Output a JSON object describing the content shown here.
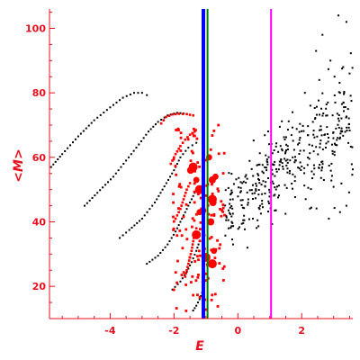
{
  "chart_data": {
    "type": "scatter",
    "xlabel": "E",
    "ylabel": "<M>",
    "xlim": [
      -5.9,
      3.6
    ],
    "ylim": [
      10,
      106
    ],
    "x_ticks": [
      -4,
      -2,
      0,
      2
    ],
    "y_ticks": [
      20,
      40,
      60,
      80,
      100
    ],
    "x_tick_labels": [
      "-4",
      "-2",
      "0",
      "2"
    ],
    "y_tick_labels": [
      "20",
      "40",
      "60",
      "80",
      "100"
    ],
    "colors": {
      "axis": "#e8101e",
      "black_points": "#000000",
      "red_points": "#ff0000",
      "blue_line": "#0000ff",
      "green_line": "#008000",
      "magenta_line": "#ff00ff"
    },
    "vertical_lines": [
      {
        "color": "blue",
        "x": -1.08
      },
      {
        "color": "green",
        "x": -0.95
      },
      {
        "color": "magenta",
        "x": 1.04
      }
    ],
    "black_series": [
      {
        "shape": "arc",
        "points": [
          [
            -5.85,
            57
          ],
          [
            -5.5,
            61
          ],
          [
            -5.0,
            66.5
          ],
          [
            -4.5,
            71.5
          ],
          [
            -4.0,
            75.5
          ],
          [
            -3.6,
            78.5
          ],
          [
            -3.25,
            80
          ],
          [
            -3.0,
            80
          ],
          [
            -2.85,
            79.3
          ]
        ]
      },
      {
        "shape": "arc",
        "points": [
          [
            -4.8,
            45
          ],
          [
            -4.4,
            49
          ],
          [
            -3.9,
            54
          ],
          [
            -3.5,
            59
          ],
          [
            -3.1,
            64
          ],
          [
            -2.8,
            68
          ],
          [
            -2.5,
            71
          ],
          [
            -2.2,
            73
          ],
          [
            -1.9,
            73.8
          ],
          [
            -1.6,
            73.5
          ]
        ]
      },
      {
        "shape": "arc",
        "points": [
          [
            -3.7,
            35
          ],
          [
            -3.4,
            37.5
          ],
          [
            -3.0,
            41
          ],
          [
            -2.6,
            46
          ],
          [
            -2.3,
            51
          ],
          [
            -2.0,
            56
          ],
          [
            -1.8,
            60
          ],
          [
            -1.55,
            63
          ],
          [
            -1.3,
            64.5
          ]
        ]
      },
      {
        "shape": "arc",
        "points": [
          [
            -2.85,
            27
          ],
          [
            -2.5,
            29.5
          ],
          [
            -2.2,
            33
          ],
          [
            -1.95,
            37
          ],
          [
            -1.7,
            42
          ],
          [
            -1.5,
            46
          ],
          [
            -1.35,
            49
          ],
          [
            -1.2,
            51
          ]
        ]
      },
      {
        "shape": "arc",
        "points": [
          [
            -2.05,
            19
          ],
          [
            -1.8,
            21.5
          ],
          [
            -1.6,
            24.5
          ],
          [
            -1.45,
            27.5
          ],
          [
            -1.3,
            31
          ],
          [
            -1.2,
            34
          ]
        ]
      },
      {
        "shape": "arc",
        "points": [
          [
            -1.4,
            12.5
          ],
          [
            -1.3,
            14
          ],
          [
            -1.2,
            16
          ],
          [
            -1.12,
            18
          ]
        ]
      },
      {
        "shape": "cloud",
        "x_range": [
          -0.4,
          3.6
        ],
        "y_center": [
          44,
          72
        ],
        "y_spread": [
          7,
          14
        ],
        "count": 380
      },
      {
        "shape": "sparse",
        "points": [
          [
            2.65,
            98
          ],
          [
            3.15,
            104
          ],
          [
            3.4,
            102
          ],
          [
            2.45,
            93
          ],
          [
            2.9,
            90
          ],
          [
            3.3,
            88
          ],
          [
            3.5,
            86
          ],
          [
            2.55,
            84
          ],
          [
            3.2,
            80
          ],
          [
            2.1,
            80
          ],
          [
            3.05,
            77
          ],
          [
            3.45,
            75
          ],
          [
            2.8,
            73
          ],
          [
            2.35,
            71
          ],
          [
            3.25,
            69
          ],
          [
            3.4,
            45
          ],
          [
            3.2,
            43
          ],
          [
            2.85,
            41
          ],
          [
            -0.15,
            33
          ],
          [
            0.3,
            32
          ]
        ]
      }
    ],
    "red_series": [
      {
        "shape": "arc",
        "points": [
          [
            -2.4,
            70.5
          ],
          [
            -2.25,
            72.5
          ],
          [
            -2.05,
            73.3
          ],
          [
            -1.85,
            73.5
          ],
          [
            -1.6,
            73.4
          ],
          [
            -1.4,
            73
          ]
        ]
      },
      {
        "shape": "arc",
        "points": [
          [
            -2.1,
            58
          ],
          [
            -1.95,
            61
          ],
          [
            -1.8,
            63.5
          ],
          [
            -1.65,
            65.5
          ],
          [
            -1.5,
            67
          ],
          [
            -1.35,
            68
          ]
        ]
      },
      {
        "shape": "arc",
        "points": [
          [
            -1.95,
            41
          ],
          [
            -1.8,
            44
          ],
          [
            -1.7,
            47
          ],
          [
            -1.6,
            50
          ],
          [
            -1.5,
            52
          ]
        ]
      },
      {
        "shape": "arc",
        "points": [
          [
            -1.65,
            23
          ],
          [
            -1.55,
            27
          ],
          [
            -1.45,
            31
          ],
          [
            -1.38,
            35
          ],
          [
            -1.3,
            38
          ]
        ]
      },
      {
        "shape": "cluster",
        "x_range": [
          -1.85,
          -0.05
        ],
        "y_range": [
          12,
          70
        ],
        "count": 140
      },
      {
        "shape": "large_points",
        "points": [
          [
            -1.4,
            57
          ],
          [
            -1.48,
            56
          ],
          [
            -1.3,
            53
          ],
          [
            -1.2,
            50
          ],
          [
            -0.8,
            53
          ],
          [
            -0.7,
            54
          ],
          [
            -0.8,
            47
          ],
          [
            -0.78,
            46
          ],
          [
            -1.2,
            43
          ],
          [
            -1.3,
            36
          ],
          [
            -0.85,
            40
          ],
          [
            -0.75,
            31
          ],
          [
            -0.8,
            27
          ],
          [
            -1.1,
            43.5
          ],
          [
            -0.9,
            60
          ],
          [
            -1.0,
            29
          ]
        ]
      }
    ]
  }
}
